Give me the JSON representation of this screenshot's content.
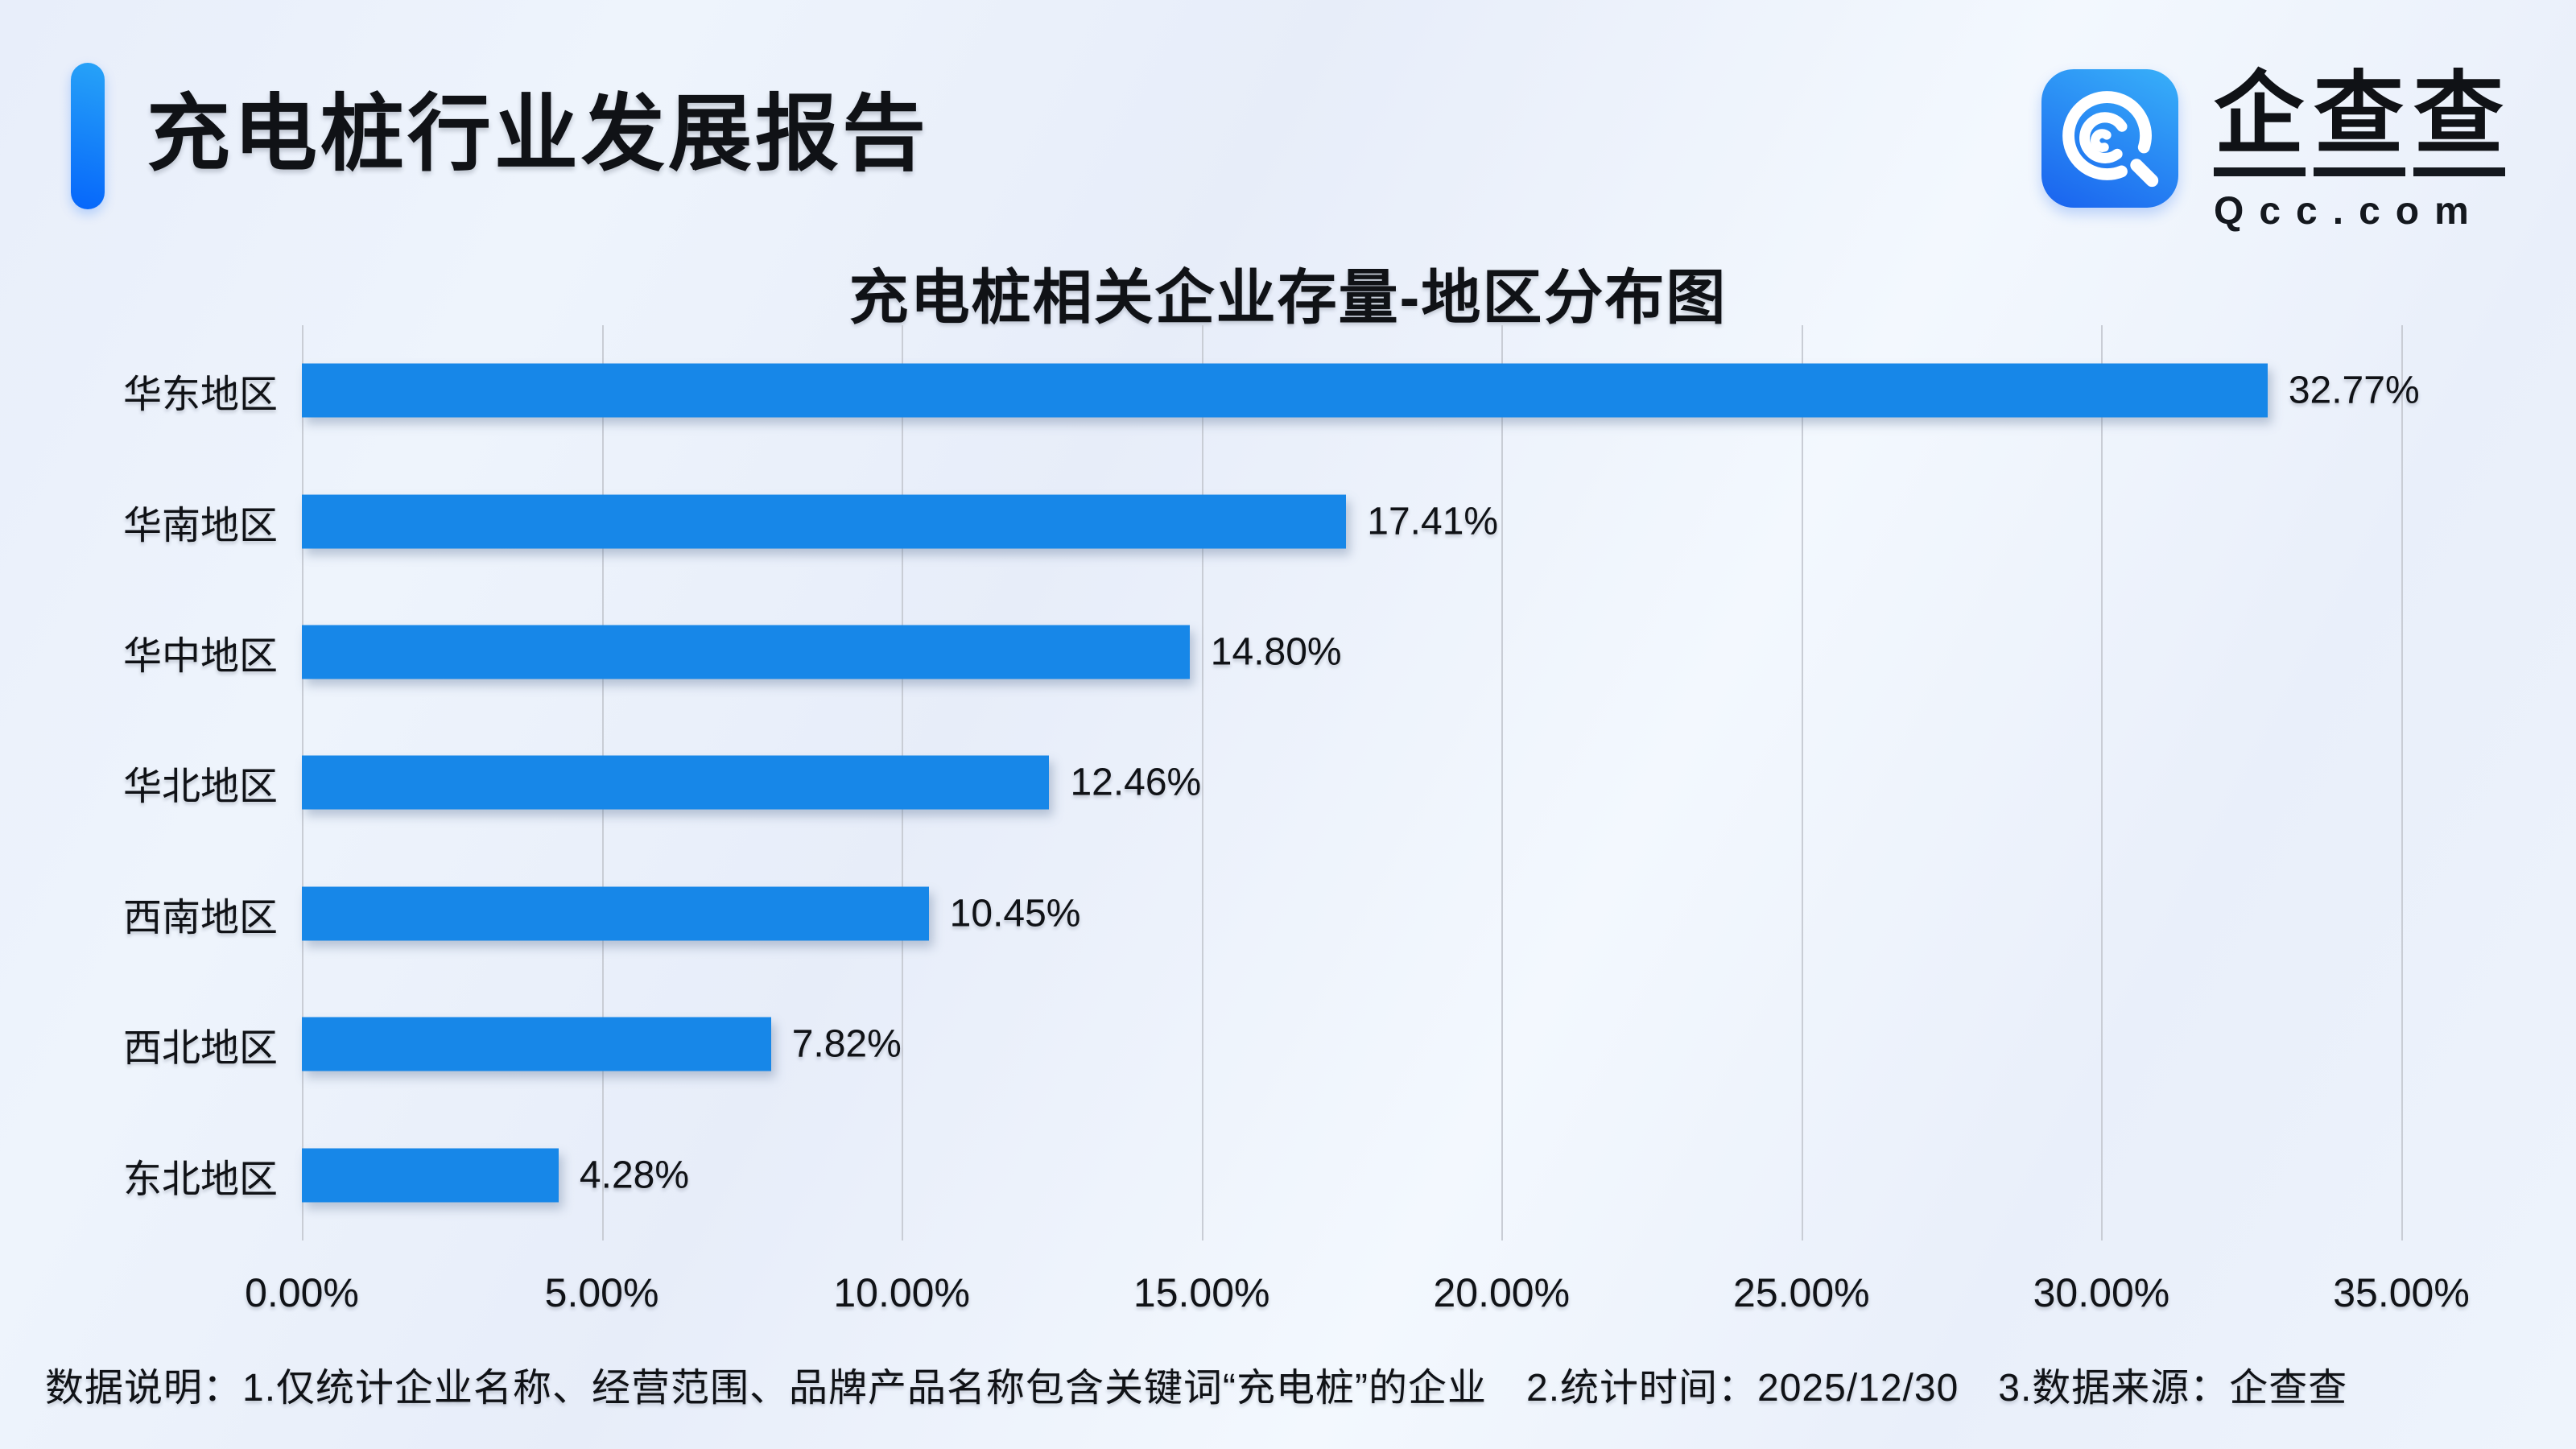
{
  "colors": {
    "bar": "#1787e8",
    "accent_top": "#27a3f8",
    "accent_bottom": "#0666fa",
    "logo_icon_from": "#38b0f9",
    "logo_icon_to": "#1b66ef",
    "grid": "#c9cdd5",
    "text": "#101216",
    "background": "#edf2fb"
  },
  "header": {
    "title": "充电桩行业发展报告",
    "logo": {
      "icon": "qcc-magnifier-icon",
      "brand_chars": [
        "企",
        "查",
        "查"
      ],
      "domain": "Qcc.com"
    }
  },
  "chart_data": {
    "type": "bar",
    "orientation": "horizontal",
    "title": "充电桩相关企业存量-地区分布图",
    "categories": [
      "华东地区",
      "华南地区",
      "华中地区",
      "华北地区",
      "西南地区",
      "西北地区",
      "东北地区"
    ],
    "values": [
      32.77,
      17.41,
      14.8,
      12.46,
      10.45,
      7.82,
      4.28
    ],
    "value_labels": [
      "32.77%",
      "17.41%",
      "14.80%",
      "12.46%",
      "10.45%",
      "7.82%",
      "4.28%"
    ],
    "x_ticks": [
      "0.00%",
      "5.00%",
      "10.00%",
      "15.00%",
      "20.00%",
      "25.00%",
      "30.00%",
      "35.00%"
    ],
    "xlim": [
      0,
      35
    ],
    "grid": true,
    "legend": false
  },
  "footnote": "数据说明：1.仅统计企业名称、经营范围、品牌产品名称包含关键词“充电桩”的企业　2.统计时间：2025/12/30　3.数据来源：企查查"
}
